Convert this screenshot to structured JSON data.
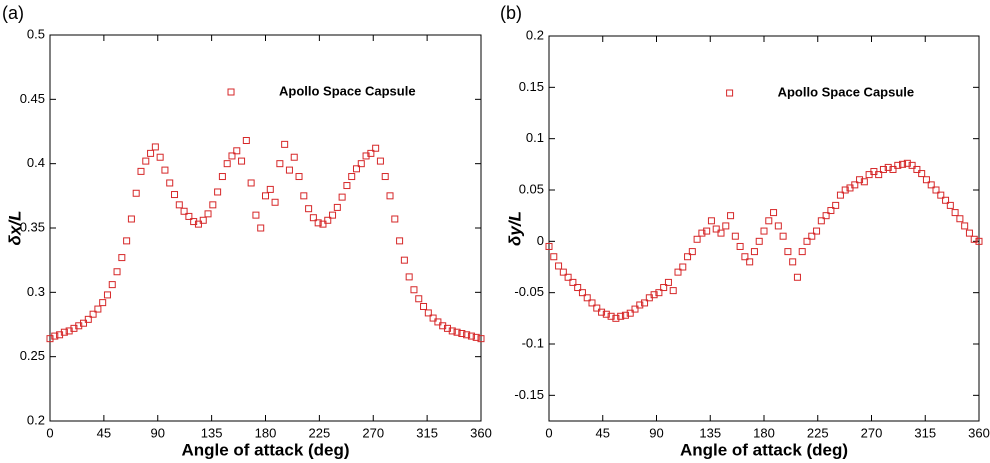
{
  "chart_data": [
    {
      "type": "scatter",
      "panel_label": "(a)",
      "xlabel": "Angle of attack (deg)",
      "ylabel": "δx/L",
      "xlim": [
        0,
        360
      ],
      "xticks": [
        0,
        45,
        90,
        135,
        180,
        225,
        270,
        315,
        360
      ],
      "ylim": [
        0.2,
        0.5
      ],
      "yticks": [
        0.2,
        0.25,
        0.3,
        0.35,
        0.4,
        0.45,
        0.5
      ],
      "legend": "top-right",
      "series": [
        {
          "name": "Apollo Space Capsule",
          "color": "#d62728",
          "x": [
            0,
            4,
            8,
            12,
            16,
            20,
            24,
            28,
            32,
            36,
            40,
            44,
            48,
            52,
            56,
            60,
            64,
            68,
            72,
            76,
            80,
            84,
            88,
            92,
            96,
            100,
            104,
            108,
            112,
            116,
            120,
            124,
            128,
            132,
            136,
            140,
            144,
            148,
            152,
            156,
            160,
            164,
            168,
            172,
            176,
            180,
            184,
            188,
            192,
            196,
            200,
            204,
            208,
            212,
            216,
            220,
            224,
            228,
            232,
            236,
            240,
            244,
            248,
            252,
            256,
            260,
            264,
            268,
            272,
            276,
            280,
            284,
            288,
            292,
            296,
            300,
            304,
            308,
            312,
            316,
            320,
            324,
            328,
            332,
            336,
            340,
            344,
            348,
            352,
            356,
            360
          ],
          "values": [
            0.264,
            0.266,
            0.267,
            0.269,
            0.27,
            0.272,
            0.274,
            0.276,
            0.279,
            0.283,
            0.287,
            0.292,
            0.298,
            0.306,
            0.316,
            0.327,
            0.34,
            0.357,
            0.377,
            0.394,
            0.402,
            0.408,
            0.413,
            0.405,
            0.395,
            0.385,
            0.376,
            0.368,
            0.363,
            0.359,
            0.355,
            0.353,
            0.356,
            0.361,
            0.368,
            0.378,
            0.39,
            0.4,
            0.406,
            0.41,
            0.402,
            0.418,
            0.385,
            0.36,
            0.35,
            0.375,
            0.38,
            0.37,
            0.4,
            0.415,
            0.395,
            0.405,
            0.39,
            0.375,
            0.365,
            0.358,
            0.354,
            0.353,
            0.356,
            0.36,
            0.366,
            0.374,
            0.383,
            0.39,
            0.396,
            0.4,
            0.406,
            0.408,
            0.412,
            0.402,
            0.39,
            0.375,
            0.357,
            0.34,
            0.325,
            0.312,
            0.302,
            0.295,
            0.289,
            0.284,
            0.28,
            0.277,
            0.274,
            0.272,
            0.27,
            0.269,
            0.268,
            0.267,
            0.266,
            0.265,
            0.264
          ]
        }
      ]
    },
    {
      "type": "scatter",
      "panel_label": "(b)",
      "xlabel": "Angle of attack (deg)",
      "ylabel": "δy/L",
      "xlim": [
        0,
        360
      ],
      "xticks": [
        0,
        45,
        90,
        135,
        180,
        225,
        270,
        315,
        360
      ],
      "ylim": [
        -0.175,
        0.2
      ],
      "yticks": [
        -0.15,
        -0.1,
        -0.05,
        0,
        0.05,
        0.1,
        0.15,
        0.2
      ],
      "legend": "top-right",
      "series": [
        {
          "name": "Apollo Space Capsule",
          "color": "#d62728",
          "x": [
            0,
            4,
            8,
            12,
            16,
            20,
            24,
            28,
            32,
            36,
            40,
            44,
            48,
            52,
            56,
            60,
            64,
            68,
            72,
            76,
            80,
            84,
            88,
            92,
            96,
            100,
            104,
            108,
            112,
            116,
            120,
            124,
            128,
            132,
            136,
            140,
            144,
            148,
            152,
            156,
            160,
            164,
            168,
            172,
            176,
            180,
            184,
            188,
            192,
            196,
            200,
            204,
            208,
            212,
            216,
            220,
            224,
            228,
            232,
            236,
            240,
            244,
            248,
            252,
            256,
            260,
            264,
            268,
            272,
            276,
            280,
            284,
            288,
            292,
            296,
            300,
            304,
            308,
            312,
            316,
            320,
            324,
            328,
            332,
            336,
            340,
            344,
            348,
            352,
            356,
            360
          ],
          "values": [
            -0.005,
            -0.015,
            -0.024,
            -0.03,
            -0.035,
            -0.04,
            -0.045,
            -0.05,
            -0.055,
            -0.06,
            -0.065,
            -0.069,
            -0.071,
            -0.073,
            -0.075,
            -0.073,
            -0.072,
            -0.07,
            -0.066,
            -0.062,
            -0.06,
            -0.055,
            -0.052,
            -0.05,
            -0.045,
            -0.04,
            -0.048,
            -0.03,
            -0.025,
            -0.015,
            -0.01,
            0.002,
            0.008,
            0.01,
            0.02,
            0.012,
            0.008,
            0.015,
            0.025,
            0.005,
            -0.005,
            -0.015,
            -0.02,
            -0.01,
            0,
            0.01,
            0.02,
            0.028,
            0.015,
            0.005,
            -0.01,
            -0.02,
            -0.035,
            -0.01,
            0,
            0.005,
            0.01,
            0.02,
            0.025,
            0.03,
            0.035,
            0.045,
            0.05,
            0.052,
            0.055,
            0.06,
            0.058,
            0.065,
            0.068,
            0.065,
            0.07,
            0.072,
            0.07,
            0.074,
            0.075,
            0.076,
            0.074,
            0.07,
            0.066,
            0.06,
            0.055,
            0.05,
            0.045,
            0.04,
            0.035,
            0.028,
            0.022,
            0.015,
            0.008,
            0.002,
            0
          ]
        }
      ]
    }
  ]
}
